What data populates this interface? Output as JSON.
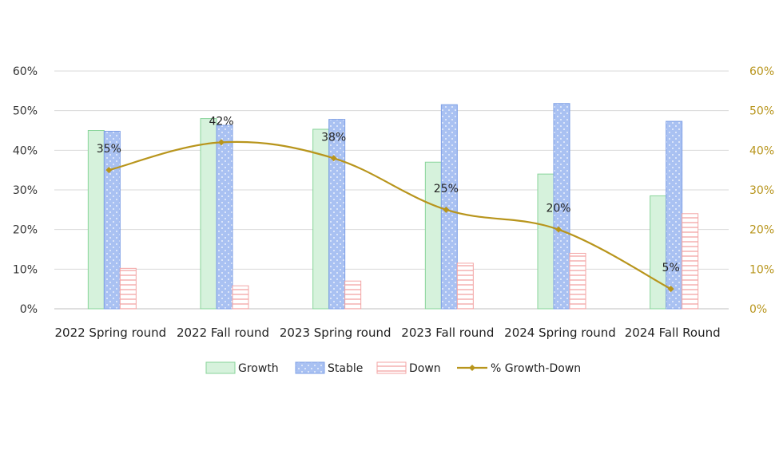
{
  "chart_data": {
    "type": "bar",
    "categories": [
      "2022 Spring round",
      "2022 Fall round",
      "2023 Spring round",
      "2023 Fall round",
      "2024 Spring round",
      "2024 Fall Round"
    ],
    "series": [
      {
        "name": "Growth",
        "type": "bar",
        "axis": "left",
        "values": [
          45,
          48,
          45.3,
          37,
          34,
          28.5
        ]
      },
      {
        "name": "Stable",
        "type": "bar",
        "axis": "left",
        "values": [
          44.8,
          46.3,
          47.8,
          51.5,
          51.8,
          47.3
        ]
      },
      {
        "name": "Down",
        "type": "bar",
        "axis": "left",
        "values": [
          10.2,
          5.8,
          7,
          11.5,
          14,
          24
        ]
      },
      {
        "name": "% Growth-Down",
        "type": "line",
        "axis": "right",
        "values": [
          35,
          42,
          38,
          25,
          20,
          5
        ],
        "labels": [
          "35%",
          "42%",
          "38%",
          "25%",
          "20%",
          "5%"
        ]
      }
    ],
    "y_left": {
      "ylim": [
        0,
        60
      ],
      "ticks": [
        "0%",
        "10%",
        "20%",
        "30%",
        "40%",
        "50%",
        "60%"
      ]
    },
    "y_right": {
      "ylim": [
        0,
        60
      ],
      "ticks": [
        "0%",
        "10%",
        "20%",
        "30%",
        "40%",
        "50%",
        "60%"
      ]
    },
    "grid": true,
    "legend": "bottom",
    "colors": {
      "growth_fill": "#d6f2dc",
      "growth_stroke": "#88d49a",
      "stable_fill": "#a9c1f2",
      "stable_stroke": "#7fa0e6",
      "down_fill": "#ffffff",
      "down_stroke": "#f3a5a5",
      "line": "#b8951c",
      "left_axis_text": "#333333",
      "right_axis_text": "#b8951c",
      "grid": "#d9d9d9"
    }
  }
}
